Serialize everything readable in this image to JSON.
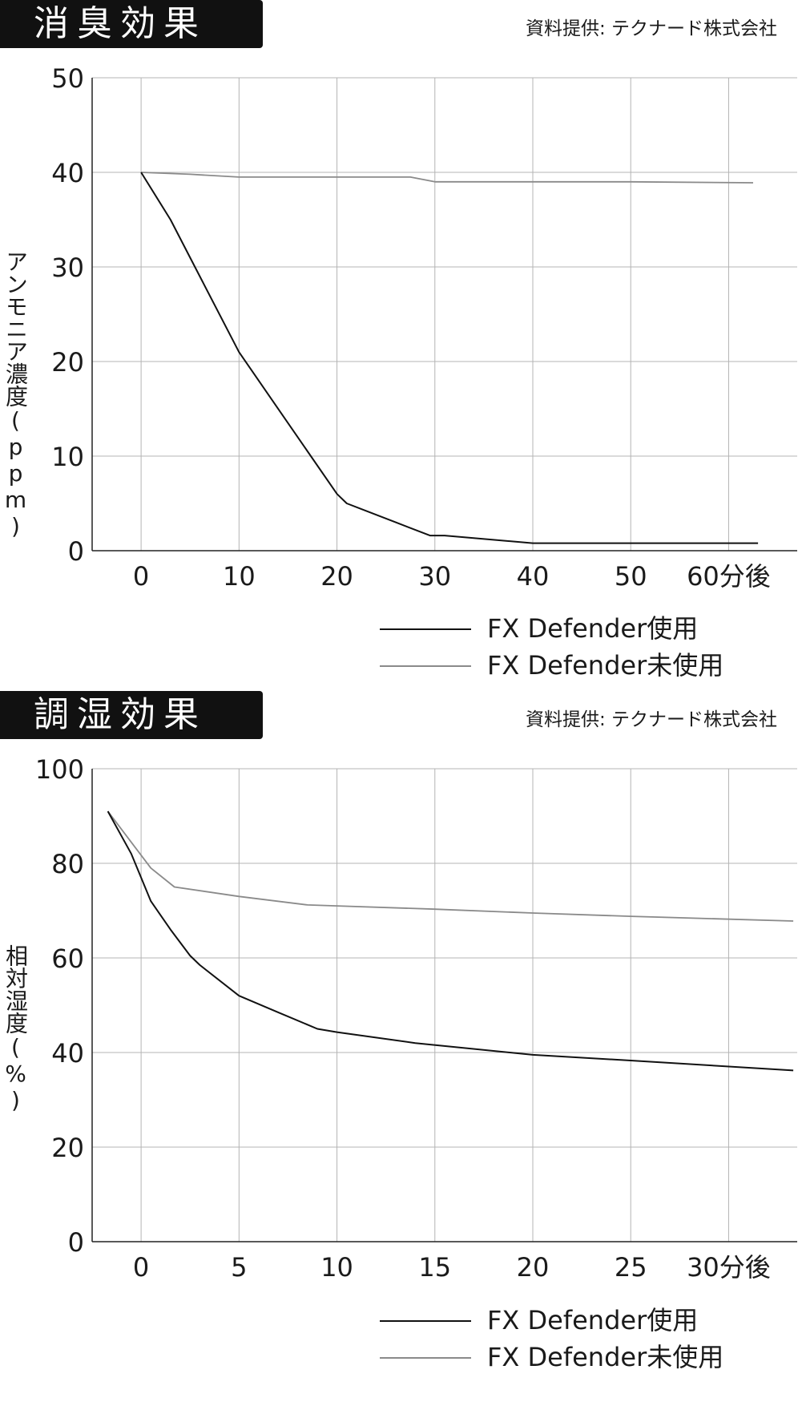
{
  "colors": {
    "series_used": "#111111",
    "series_unused": "#8a8a8a",
    "grid": "#b4b4b4",
    "badge": "#111111"
  },
  "chart_data": [
    {
      "type": "line",
      "title": "消臭効果",
      "source": "資料提供: テクナード株式会社",
      "ylabel": "アンモニア濃度(ppm)",
      "xlabel": "",
      "xlim": [
        -5,
        67
      ],
      "ylim": [
        0,
        50
      ],
      "x_ticks": [
        0,
        10,
        20,
        30,
        40,
        50,
        60
      ],
      "x_tick_labels": [
        "0",
        "10",
        "20",
        "30",
        "40",
        "50",
        "60分後"
      ],
      "y_ticks": [
        0,
        10,
        20,
        30,
        40,
        50
      ],
      "y_tick_labels": [
        "0",
        "10",
        "20",
        "30",
        "40",
        "50"
      ],
      "grid": true,
      "legend_position": "bottom-right",
      "series": [
        {
          "name": "FX Defender使用",
          "color": "#111111",
          "points": [
            [
              0,
              40
            ],
            [
              3,
              35
            ],
            [
              5.5,
              30
            ],
            [
              10,
              21
            ],
            [
              15,
              13.5
            ],
            [
              20,
              6
            ],
            [
              21,
              5
            ],
            [
              26,
              3
            ],
            [
              29.5,
              1.6
            ],
            [
              31,
              1.6
            ],
            [
              40,
              0.8
            ],
            [
              50,
              0.8
            ],
            [
              63,
              0.8
            ]
          ]
        },
        {
          "name": "FX Defender未使用",
          "color": "#8a8a8a",
          "points": [
            [
              0,
              40
            ],
            [
              5,
              39.8
            ],
            [
              10,
              39.5
            ],
            [
              20,
              39.5
            ],
            [
              27.5,
              39.5
            ],
            [
              30,
              39
            ],
            [
              40,
              39
            ],
            [
              50,
              39
            ],
            [
              62.5,
              38.9
            ]
          ]
        }
      ]
    },
    {
      "type": "line",
      "title": "調湿効果",
      "source": "資料提供: テクナード株式会社",
      "ylabel": "相対湿度(%)",
      "xlabel": "",
      "xlim": [
        -2.5,
        33.5
      ],
      "ylim": [
        0,
        100
      ],
      "x_ticks": [
        0,
        5,
        10,
        15,
        20,
        25,
        30
      ],
      "x_tick_labels": [
        "0",
        "5",
        "10",
        "15",
        "20",
        "25",
        "30分後"
      ],
      "y_ticks": [
        0,
        20,
        40,
        60,
        80,
        100
      ],
      "y_tick_labels": [
        "0",
        "20",
        "40",
        "60",
        "80",
        "100"
      ],
      "grid": true,
      "legend_position": "bottom-right",
      "series": [
        {
          "name": "FX Defender使用",
          "color": "#111111",
          "points": [
            [
              -1.7,
              91
            ],
            [
              -0.5,
              82
            ],
            [
              0.5,
              72
            ],
            [
              1.5,
              66
            ],
            [
              2.5,
              60.5
            ],
            [
              3,
              58.5
            ],
            [
              5,
              52
            ],
            [
              7,
              48.5
            ],
            [
              9,
              45
            ],
            [
              10,
              44.3
            ],
            [
              14,
              42
            ],
            [
              20,
              39.5
            ],
            [
              25,
              38.3
            ],
            [
              33.3,
              36.2
            ]
          ]
        },
        {
          "name": "FX Defender未使用",
          "color": "#8a8a8a",
          "points": [
            [
              -1.7,
              91
            ],
            [
              0.5,
              79
            ],
            [
              1.7,
              75
            ],
            [
              5,
              73
            ],
            [
              8.5,
              71.2
            ],
            [
              10,
              71
            ],
            [
              15,
              70.3
            ],
            [
              20,
              69.5
            ],
            [
              25,
              68.8
            ],
            [
              33.3,
              67.8
            ]
          ]
        }
      ]
    }
  ]
}
